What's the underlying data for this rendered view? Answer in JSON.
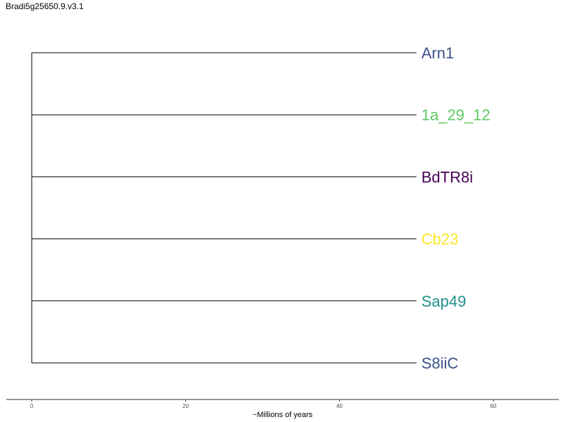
{
  "title": "Bradi5g25650.9.v3.1",
  "tree": {
    "root_age": 0,
    "tips": [
      {
        "name": "Arn1",
        "color": "#3b528b",
        "branch_length": 50
      },
      {
        "name": "1a_29_12",
        "color": "#5ec962",
        "branch_length": 50
      },
      {
        "name": "BdTR8i",
        "color": "#440154",
        "branch_length": 50
      },
      {
        "name": "Cb23",
        "color": "#fde725",
        "branch_length": 50
      },
      {
        "name": "Sap49",
        "color": "#21918c",
        "branch_length": 50
      },
      {
        "name": "S8iiC",
        "color": "#3b528b",
        "branch_length": 50
      }
    ]
  },
  "axis": {
    "label": "~Millions of years",
    "ticks": [
      0,
      20,
      40,
      60
    ],
    "range": [
      -3.3,
      68.5
    ]
  }
}
